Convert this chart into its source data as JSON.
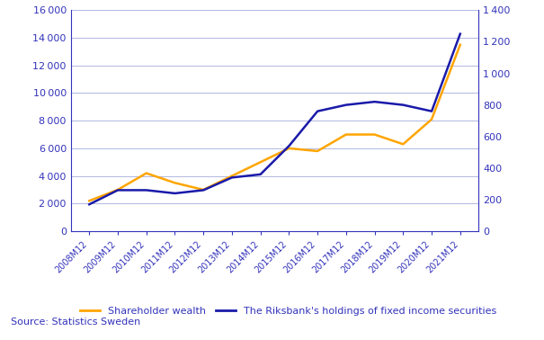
{
  "x_labels": [
    "2008M12",
    "2009M12",
    "2010M12",
    "2011M12",
    "2012M12",
    "2013M12",
    "2014M12",
    "2015M12",
    "2016M12",
    "2017M12",
    "2018M12",
    "2019M12",
    "2020M12",
    "2021M12"
  ],
  "shareholder_wealth": [
    2200,
    3000,
    4200,
    3500,
    3000,
    4000,
    5000,
    6000,
    5800,
    7000,
    7000,
    6300,
    8100,
    13500
  ],
  "riksbank_holdings": [
    170,
    260,
    260,
    240,
    260,
    340,
    360,
    540,
    760,
    800,
    820,
    800,
    760,
    1250
  ],
  "lhs_ylim": [
    0,
    16000
  ],
  "rhs_ylim": [
    0,
    1400
  ],
  "lhs_yticks": [
    0,
    2000,
    4000,
    6000,
    8000,
    10000,
    12000,
    14000,
    16000
  ],
  "rhs_yticks": [
    0,
    200,
    400,
    600,
    800,
    1000,
    1200,
    1400
  ],
  "line_color_shareholder": "#FFA500",
  "line_color_riksbank": "#1a1aaa",
  "background_color": "#ffffff",
  "grid_color": "#b0b8e0",
  "axis_color": "#3333bb",
  "legend_label_shareholder": "Shareholder wealth",
  "legend_label_riksbank": "The Riksbank's holdings of fixed income securities",
  "source_text": "Source: Statistics Sweden",
  "linewidth": 1.8
}
